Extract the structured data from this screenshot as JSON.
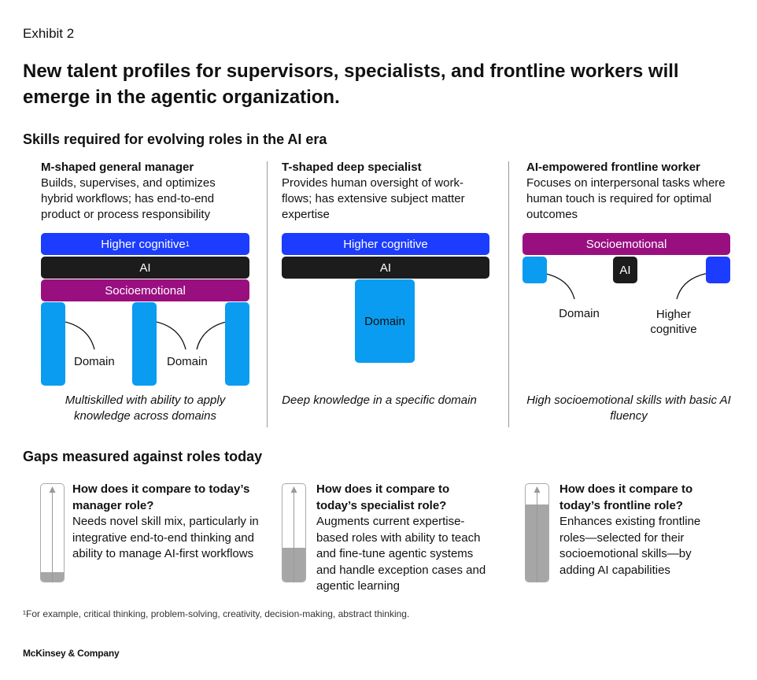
{
  "exhibit": "Exhibit 2",
  "title": "New talent profiles for supervisors, specialists, and frontline workers will emerge in the agentic organization.",
  "skills_heading": "Skills required for evolving roles in the AI era",
  "columns": [
    {
      "title": "M-shaped general manager",
      "desc": "Builds, supervises, and optimizes hybrid workflows; has end-to-end product or process responsibility",
      "bars": [
        "Higher cognitive",
        "AI",
        "Socioemotional"
      ],
      "footnote_mark": "1",
      "labels": [
        "Domain",
        "Domain"
      ],
      "caption": "Multiskilled with ability to apply knowledge across domains"
    },
    {
      "title": "T-shaped deep specialist",
      "desc": "Provides human oversight of work-flows; has extensive subject matter expertise",
      "bars": [
        "Higher cognitive",
        "AI"
      ],
      "labels": [
        "Domain"
      ],
      "caption": "Deep knowledge in a specific domain"
    },
    {
      "title": "AI-empowered frontline worker",
      "desc": "Focuses on interpersonal tasks where human touch is required for optimal outcomes",
      "bars": [
        "Socioemotional",
        "AI"
      ],
      "labels": [
        "Domain",
        "Higher cognitive"
      ],
      "caption": "High socioemotional skills with basic AI fluency"
    }
  ],
  "gaps_heading": "Gaps measured against roles today",
  "gaps": [
    {
      "question": "How does it compare to today’s manager role?",
      "answer": "Needs novel skill mix, particularly in integrative end-to-end thinking and ability to manage AI-first workflows",
      "gap_fill_pct": 10
    },
    {
      "question": "How does it compare to today’s specialist role?",
      "answer": "Augments current expertise-based roles with ability to teach and fine-tune agentic systems and handle exception cases and agentic learning",
      "gap_fill_pct": 35
    },
    {
      "question": "How does it compare to today’s frontline role?",
      "answer": "Enhances existing frontline roles—selected for their socioemotional skills—by adding AI capabilities",
      "gap_fill_pct": 79
    }
  ],
  "footnote": "¹For example, critical thinking, problem-solving, creativity, decision-making, abstract thinking.",
  "brand": "McKinsey & Company",
  "colors": {
    "higher_cognitive": "#1c3cff",
    "ai": "#1c1c1c",
    "socioemotional": "#9a0f80",
    "domain": "#0a9cf0",
    "gauge_fill": "#a6a6a6"
  }
}
